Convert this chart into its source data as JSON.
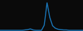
{
  "x": [
    0,
    1,
    2,
    3,
    4,
    5,
    6,
    7,
    8,
    9,
    10,
    11,
    12,
    13,
    14,
    15,
    16,
    17,
    18,
    19,
    20,
    21,
    22,
    23,
    24,
    25,
    26,
    27,
    28,
    29,
    30
  ],
  "y": [
    1,
    1,
    1,
    1,
    1,
    1,
    1,
    1,
    1,
    2,
    3,
    5,
    2,
    1,
    1,
    1,
    16,
    80,
    38,
    14,
    7,
    4,
    3,
    2,
    2,
    1,
    1,
    1,
    1,
    1,
    1
  ],
  "line_color": "#1a7abf",
  "line_width": 1.0,
  "bg_color": "#0a0a0a"
}
